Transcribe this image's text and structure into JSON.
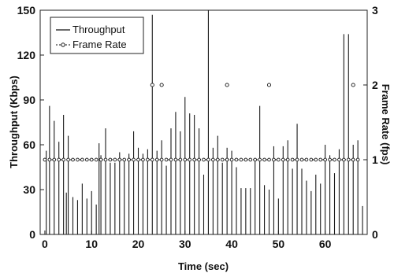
{
  "chart_data": {
    "type": "bar",
    "xlabel": "Time (sec)",
    "ylabel": "Throughput (Kbps)",
    "y2label": "Frame Rate (fps)",
    "xlim": [
      -1,
      69
    ],
    "ylim": [
      0,
      150
    ],
    "y2lim": [
      0,
      3
    ],
    "xticks": [
      "0",
      "10",
      "20",
      "30",
      "40",
      "50",
      "60"
    ],
    "yticks": [
      "0",
      "30",
      "60",
      "90",
      "120",
      "150"
    ],
    "y2ticks": [
      "0",
      "1",
      "2",
      "3"
    ],
    "legend_position": "top-left",
    "grid": false,
    "series": [
      {
        "name": "Throughput",
        "type": "bar",
        "axis": "left",
        "x": [
          0.3,
          1,
          2,
          3,
          4,
          4.6,
          5,
          6,
          7,
          8,
          9,
          10,
          11,
          11.6,
          12,
          13,
          14,
          15,
          16,
          17,
          18,
          19,
          20,
          21,
          22,
          23,
          24,
          25,
          26,
          27,
          28,
          29,
          30,
          31,
          32,
          33,
          34,
          35,
          36,
          37,
          38,
          39,
          40,
          41,
          42,
          43,
          44,
          45,
          46,
          47,
          48,
          49,
          50,
          51,
          52,
          53,
          54,
          55,
          56,
          57,
          58,
          59,
          60,
          61,
          62,
          63,
          64,
          65,
          66,
          67,
          68
        ],
        "values": [
          56,
          86,
          76,
          62,
          80,
          28,
          66,
          25,
          23,
          34,
          24,
          29,
          20,
          61,
          53,
          71,
          48,
          48,
          55,
          49,
          54,
          69,
          58,
          54,
          57,
          147,
          56,
          63,
          46,
          71,
          82,
          69,
          92,
          81,
          80,
          71,
          40,
          150,
          58,
          66,
          48,
          58,
          56,
          45,
          31,
          31,
          31,
          50,
          86,
          33,
          30,
          59,
          24,
          59,
          63,
          44,
          74,
          44,
          36,
          29,
          40,
          34,
          60,
          53,
          41,
          57,
          134,
          134,
          60,
          63,
          19
        ]
      },
      {
        "name": "Frame Rate",
        "type": "line",
        "axis": "right",
        "x": [
          0,
          1,
          2,
          3,
          4,
          5,
          6,
          7,
          8,
          9,
          10,
          11,
          12,
          13,
          14,
          15,
          16,
          17,
          18,
          19,
          20,
          21,
          22,
          23,
          24,
          25,
          26,
          27,
          28,
          29,
          30,
          31,
          32,
          33,
          34,
          35,
          36,
          37,
          38,
          39,
          40,
          41,
          42,
          43,
          44,
          45,
          46,
          47,
          48,
          49,
          50,
          51,
          52,
          53,
          54,
          55,
          56,
          57,
          58,
          59,
          60,
          61,
          62,
          63,
          64,
          65,
          66,
          67
        ],
        "values": [
          1,
          1,
          1,
          1,
          1,
          1,
          1,
          1,
          1,
          1,
          1,
          1,
          1,
          1,
          1,
          1,
          1,
          1,
          1,
          1,
          1,
          1,
          1,
          1,
          1,
          1,
          1,
          1,
          1,
          1,
          1,
          1,
          1,
          1,
          1,
          1,
          1,
          1,
          1,
          1,
          1,
          1,
          1,
          1,
          1,
          1,
          1,
          1,
          1,
          1,
          1,
          1,
          1,
          1,
          1,
          1,
          1,
          1,
          1,
          1,
          1,
          1,
          1,
          1,
          1,
          1,
          1,
          1
        ],
        "extra_points": {
          "x": [
            23,
            25,
            39,
            48,
            66
          ],
          "values": [
            2,
            2,
            2,
            2,
            2
          ]
        }
      }
    ]
  }
}
